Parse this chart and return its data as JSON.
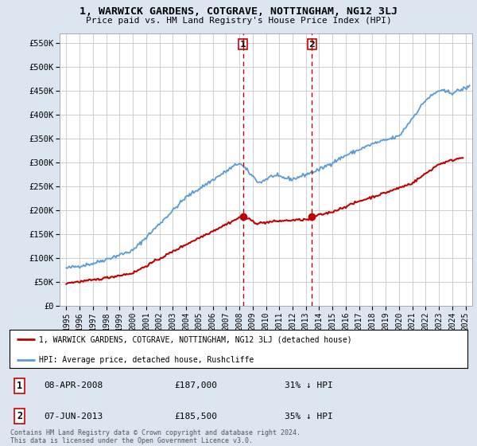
{
  "title": "1, WARWICK GARDENS, COTGRAVE, NOTTINGHAM, NG12 3LJ",
  "subtitle": "Price paid vs. HM Land Registry's House Price Index (HPI)",
  "ylabel_ticks": [
    "£0",
    "£50K",
    "£100K",
    "£150K",
    "£200K",
    "£250K",
    "£300K",
    "£350K",
    "£400K",
    "£450K",
    "£500K",
    "£550K"
  ],
  "ytick_values": [
    0,
    50000,
    100000,
    150000,
    200000,
    250000,
    300000,
    350000,
    400000,
    450000,
    500000,
    550000
  ],
  "ylim": [
    0,
    570000
  ],
  "xlim_start": 1994.5,
  "xlim_end": 2025.5,
  "hpi_color": "#5b9bd5",
  "property_color": "#c00000",
  "marker_color": "#c00000",
  "vline_color": "#c00000",
  "background_color": "#dce6f1",
  "plot_bg_color": "#ffffff",
  "grid_color": "#c8c8c8",
  "transaction1_date": "08-APR-2008",
  "transaction1_price": "£187,000",
  "transaction1_hpi": "31% ↓ HPI",
  "transaction1_x": 2008.27,
  "transaction2_date": "07-JUN-2013",
  "transaction2_price": "£185,500",
  "transaction2_hpi": "35% ↓ HPI",
  "transaction2_x": 2013.44,
  "legend_property": "1, WARWICK GARDENS, COTGRAVE, NOTTINGHAM, NG12 3LJ (detached house)",
  "legend_hpi": "HPI: Average price, detached house, Rushcliffe",
  "footer": "Contains HM Land Registry data © Crown copyright and database right 2024.\nThis data is licensed under the Open Government Licence v3.0.",
  "xtick_years": [
    1995,
    1996,
    1997,
    1998,
    1999,
    2000,
    2001,
    2002,
    2003,
    2004,
    2005,
    2006,
    2007,
    2008,
    2009,
    2010,
    2011,
    2012,
    2013,
    2014,
    2015,
    2016,
    2017,
    2018,
    2019,
    2020,
    2021,
    2022,
    2023,
    2024,
    2025
  ]
}
